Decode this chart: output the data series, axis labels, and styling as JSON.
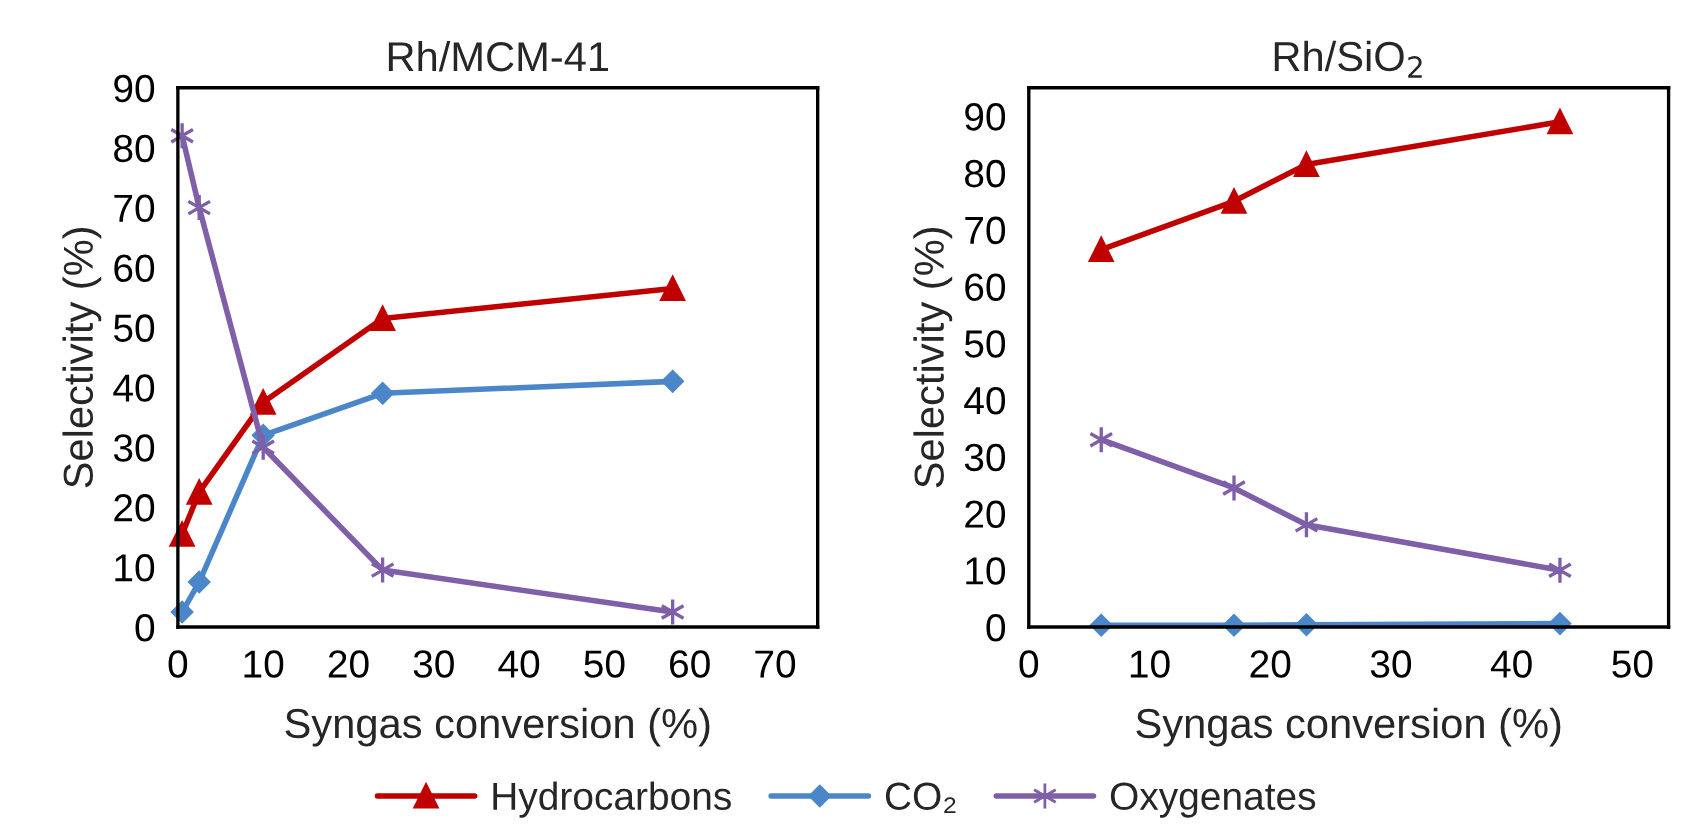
{
  "chart_data": [
    {
      "type": "line",
      "title": "Rh/MCM-41",
      "xlabel": "Syngas conversion (%)",
      "ylabel": "Selectivity (%)",
      "x": [
        0.5,
        2.5,
        10,
        24,
        58
      ],
      "xlim": [
        0,
        75
      ],
      "xticks": [
        0,
        10,
        20,
        30,
        40,
        50,
        60,
        70
      ],
      "ylim": [
        0,
        90
      ],
      "yticks": [
        0,
        10,
        20,
        30,
        40,
        50,
        60,
        70,
        80,
        90
      ],
      "grid": false,
      "legend": "bottom",
      "series": [
        {
          "name": "Hydrocarbons",
          "color": "#c00000",
          "marker": "triangle",
          "values": [
            15.5,
            22.5,
            37.5,
            51.5,
            56.5
          ]
        },
        {
          "name": "CO₂",
          "color": "#4a86c8",
          "marker": "diamond",
          "values": [
            2.5,
            7.5,
            32,
            39,
            41
          ]
        },
        {
          "name": "Oxygenates",
          "color": "#7f5fa8",
          "marker": "cross",
          "values": [
            82,
            70,
            30,
            9.5,
            2.5
          ]
        }
      ]
    },
    {
      "type": "line",
      "title": "Rh/SiO$_{2}$",
      "xlabel": "Syngas conversion (%)",
      "ylabel": "Selectivity (%)",
      "x": [
        6,
        17,
        23,
        44
      ],
      "xlim": [
        0,
        53
      ],
      "xticks": [
        0,
        10,
        20,
        30,
        40,
        50
      ],
      "ylim": [
        0,
        95
      ],
      "yticks": [
        0,
        10,
        20,
        30,
        40,
        50,
        60,
        70,
        80,
        90
      ],
      "grid": false,
      "series": [
        {
          "color": "#c00000",
          "marker": "triangle",
          "values": [
            66.5,
            75,
            81.5,
            89
          ]
        },
        {
          "color": "#4a86c8",
          "marker": "diamond",
          "values": [
            0.3,
            0.3,
            0.4,
            0.6
          ]
        },
        {
          "color": "#7f5fa8",
          "marker": "cross",
          "values": [
            33,
            24.5,
            18,
            10
          ]
        }
      ]
    }
  ]
}
